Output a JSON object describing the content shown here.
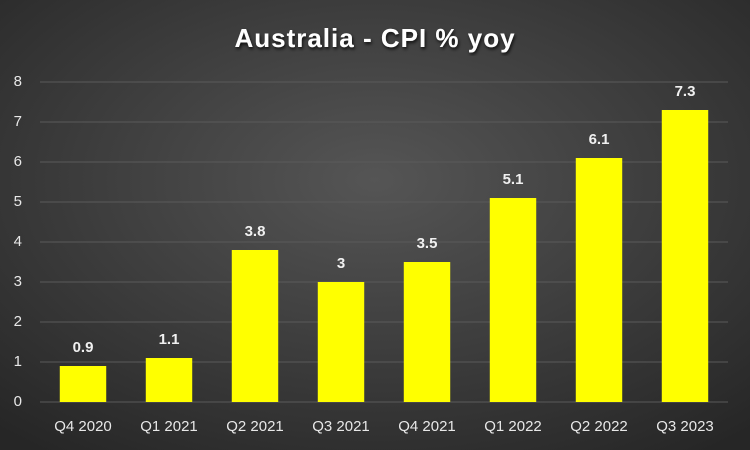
{
  "chart_data": {
    "type": "bar",
    "title": "Australia - CPI % yoy",
    "categories": [
      "Q4 2020",
      "Q1 2021",
      "Q2 2021",
      "Q3 2021",
      "Q4 2021",
      "Q1 2022",
      "Q2 2022",
      "Q3 2023"
    ],
    "values": [
      0.9,
      1.1,
      3.8,
      3,
      3.5,
      5.1,
      6.1,
      7.3
    ],
    "color": "#ffff00",
    "ylim": [
      0,
      8
    ],
    "yticks": [
      0,
      1,
      2,
      3,
      4,
      5,
      6,
      7,
      8
    ],
    "grid": true
  }
}
